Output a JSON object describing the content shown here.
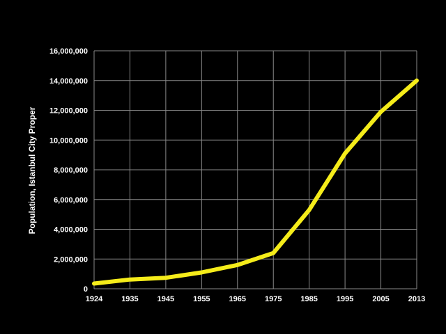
{
  "chart_data": {
    "type": "line",
    "title": "",
    "xlabel": "",
    "ylabel": "Population, Istanbul City Proper",
    "x": [
      "1924",
      "1935",
      "1945",
      "1955",
      "1965",
      "1975",
      "1985",
      "1995",
      "2005",
      "2013"
    ],
    "series": [
      {
        "values": [
          350000,
          620000,
          740000,
          1100000,
          1600000,
          2400000,
          5300000,
          9100000,
          11900000,
          14000000
        ]
      }
    ],
    "ylim": [
      0,
      16000000
    ],
    "yticks": [
      "0",
      "2,000,000",
      "4,000,000",
      "6,000,000",
      "8,000,000",
      "10,000,000",
      "12,000,000",
      "14,000,000",
      "16,000,000"
    ],
    "grid": true,
    "colors": {
      "background": "#000000",
      "line": "#f5ec1a",
      "grid": "#8a8a8a",
      "text": "#ffffff"
    }
  }
}
